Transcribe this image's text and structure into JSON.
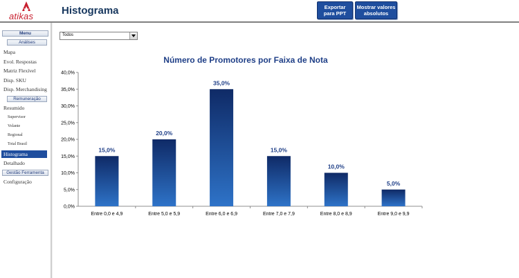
{
  "header": {
    "logo_text": "atikas",
    "title": "Histograma",
    "buttons": {
      "export_line1": "Exportar",
      "export_line2": "para PPT",
      "absolute_line1": "Mostrar valores",
      "absolute_line2": "absolutos"
    }
  },
  "sidebar": {
    "menu_label": "Menu",
    "analises_label": "Análises",
    "analises_items": [
      "Mapa",
      "Evol. Respostas",
      "Matriz Flexível",
      "Disp. SKU",
      "Disp. Merchandising"
    ],
    "remuneracao_label": "Remuneração",
    "remuneracao_item": "Resumido",
    "remuneracao_subitems": [
      "Supervisor",
      "Volante",
      "Regional",
      "Total Brasil"
    ],
    "active_item": "Histograma",
    "detalhado_item": "Detalhado",
    "gestao_label": "Gestão Ferramenta",
    "config_item": "Configuração"
  },
  "filter": {
    "selected_value": "Todos"
  },
  "colors": {
    "accent": "#1f4e9e",
    "title": "#1f3f87",
    "bar_top": "#0f2a66",
    "bar_bottom": "#2e73c8",
    "logo": "#c8202f"
  },
  "chart_data": {
    "type": "bar",
    "title": "Número de Promotores por Faixa de Nota",
    "categories": [
      "Entre 0,0 e 4,9",
      "Entre 5,0 e 5,9",
      "Entre 6,0 e 6,9",
      "Entre 7,0 e 7,9",
      "Entre 8,0 e 8,9",
      "Entre 9,0 e 9,9"
    ],
    "values": [
      15.0,
      20.0,
      35.0,
      15.0,
      10.0,
      5.0
    ],
    "data_labels": [
      "15,0%",
      "20,0%",
      "35,0%",
      "15,0%",
      "10,0%",
      "5,0%"
    ],
    "ylim": [
      0,
      40
    ],
    "y_ticks": [
      "0,0%",
      "5,0%",
      "10,0%",
      "15,0%",
      "20,0%",
      "25,0%",
      "30,0%",
      "35,0%",
      "40,0%"
    ],
    "xlabel": "",
    "ylabel": "",
    "grid": false,
    "legend": "none"
  }
}
